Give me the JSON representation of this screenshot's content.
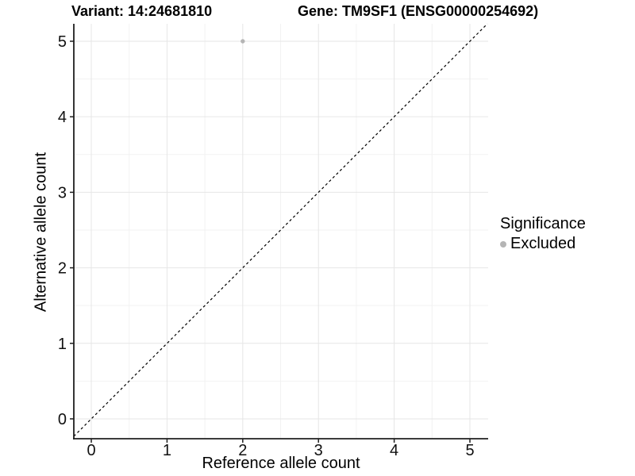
{
  "chart_data": {
    "type": "scatter",
    "title_left": "Variant: 14:24681810",
    "title_right": "Gene: TM9SF1 (ENSG00000254692)",
    "xlabel": "Reference allele count",
    "ylabel": "Alternative allele count",
    "xlim": [
      -0.231,
      5.241
    ],
    "ylim": [
      -0.263,
      5.231
    ],
    "xticks": [
      0,
      1,
      2,
      3,
      4,
      5
    ],
    "yticks": [
      0,
      1,
      2,
      3,
      4,
      5
    ],
    "minor_xticks": [
      0.5,
      1.5,
      2.5,
      3.5,
      4.5
    ],
    "minor_yticks": [
      0.5,
      1.5,
      2.5,
      3.5,
      4.5
    ],
    "grid": "major+minor",
    "points": [
      {
        "x": 2,
        "y": 5,
        "series": "Excluded"
      }
    ],
    "reference_line": {
      "type": "identity",
      "slope": 1,
      "intercept": 0,
      "style": "dashed"
    },
    "legend": {
      "title": "Significance",
      "position": "right",
      "entries": [
        {
          "label": "Excluded",
          "color": "#b5b5b5"
        }
      ]
    },
    "colors": {
      "background": "#ffffff",
      "grid_major": "#e6e6e6",
      "grid_minor": "#f2f2f2",
      "axis": "#1f1f1f",
      "tick_text": "#111111",
      "point": "#b5b5b5",
      "reference_line": "#000000"
    }
  }
}
